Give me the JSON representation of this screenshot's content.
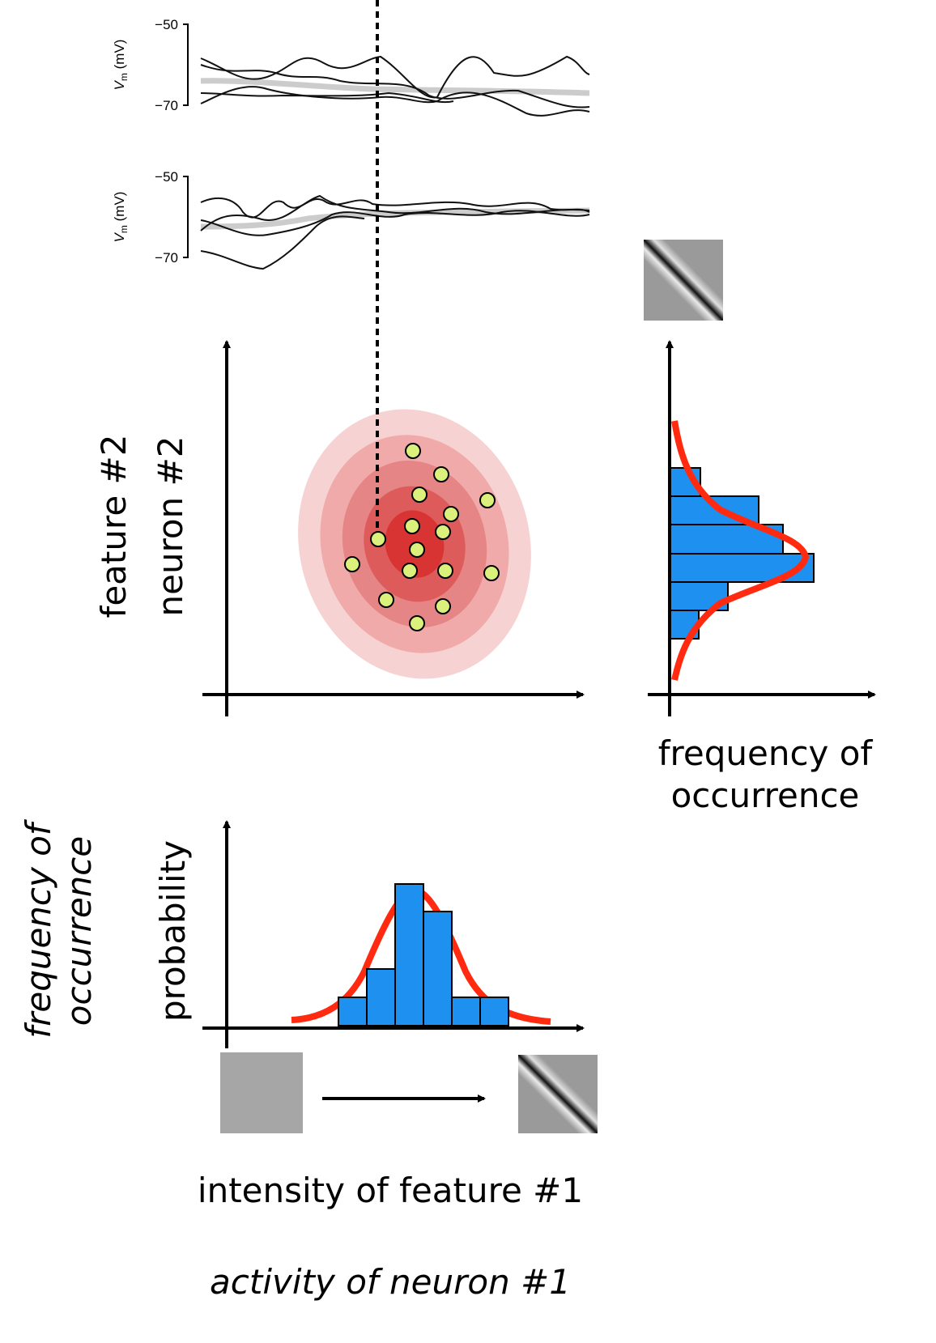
{
  "traces": [
    {
      "y_top": "−50",
      "y_label_main": "V",
      "y_label_sub": "m",
      "y_label_unit": "(mV)",
      "y_bottom": "−70"
    },
    {
      "y_top": "−50",
      "y_label_main": "V",
      "y_label_sub": "m",
      "y_label_unit": "(mV)",
      "y_bottom": "−70"
    }
  ],
  "scatter": {
    "y_label_1": "feature #2",
    "y_label_2": "neuron #2"
  },
  "right_hist": {
    "x_label_1": "frequency of",
    "x_label_2": "occurrence"
  },
  "bottom_hist": {
    "y_label_italic_1": "frequency of",
    "y_label_italic_2": "occurrence",
    "y_label": "probability",
    "x_label": "intensity of feature #1",
    "x_label_italic": "activity of neuron #1"
  }
}
